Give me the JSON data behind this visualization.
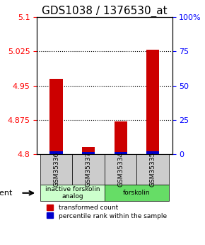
{
  "title": "GDS1038 / 1376530_at",
  "samples": [
    "GSM35336",
    "GSM35337",
    "GSM35334",
    "GSM35335"
  ],
  "red_values": [
    4.965,
    4.815,
    4.872,
    5.028
  ],
  "blue_values": [
    4.806,
    4.804,
    4.805,
    4.806
  ],
  "ylim": [
    4.8,
    5.1
  ],
  "yticks_left": [
    4.8,
    4.875,
    4.95,
    5.025,
    5.1
  ],
  "yticks_right": [
    0,
    25,
    50,
    75,
    100
  ],
  "ytick_labels_left": [
    "4.8",
    "4.875",
    "4.95",
    "5.025",
    "5.1"
  ],
  "ytick_labels_right": [
    "0",
    "25",
    "50",
    "75",
    "100%"
  ],
  "grid_vals": [
    4.875,
    4.95,
    5.025
  ],
  "groups": [
    {
      "label": "inactive forskolin\nanalog",
      "samples": [
        0,
        1
      ],
      "color": "#ccffcc"
    },
    {
      "label": "forskolin",
      "samples": [
        2,
        3
      ],
      "color": "#66dd66"
    }
  ],
  "bar_width": 0.4,
  "red_color": "#cc0000",
  "blue_color": "#0000cc",
  "legend_red": "transformed count",
  "legend_blue": "percentile rank within the sample",
  "agent_label": "agent",
  "title_fontsize": 11,
  "tick_fontsize": 8,
  "label_fontsize": 8
}
